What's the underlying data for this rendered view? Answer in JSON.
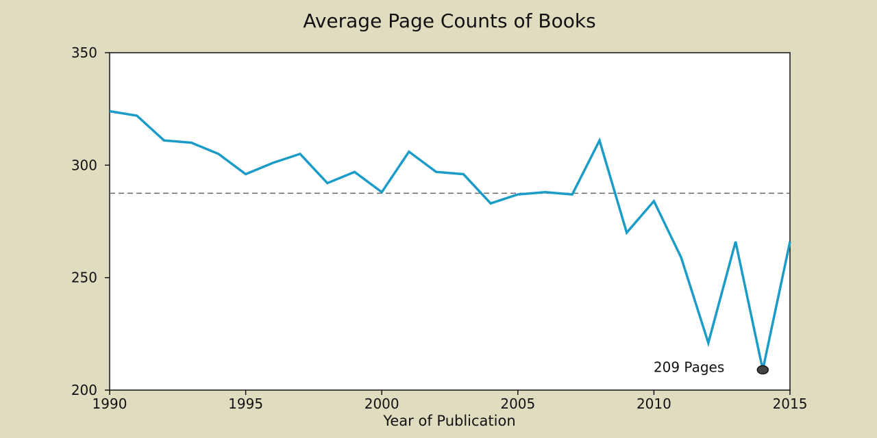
{
  "chart_data": {
    "type": "line",
    "title": "Average Page Counts of Books",
    "xlabel": "Year of Publication",
    "ylabel": "",
    "xlim": [
      1990,
      2015
    ],
    "ylim": [
      200,
      350
    ],
    "xticks": [
      1990,
      1995,
      2000,
      2005,
      2010,
      2015
    ],
    "yticks": [
      200,
      250,
      300,
      350
    ],
    "grid": false,
    "legend": "none",
    "series": [
      {
        "color": "#1a9cc7",
        "x": [
          1990,
          1991,
          1992,
          1993,
          1994,
          1995,
          1996,
          1997,
          1998,
          1999,
          2000,
          2001,
          2002,
          2003,
          2004,
          2005,
          2006,
          2007,
          2008,
          2009,
          2010,
          2011,
          2012,
          2013,
          2014,
          2015
        ],
        "y": [
          324,
          322,
          311,
          310,
          305,
          296,
          301,
          305,
          292,
          297,
          288,
          306,
          297,
          296,
          283,
          287,
          288,
          287,
          311,
          270,
          284,
          259,
          221,
          266,
          209,
          266
        ]
      }
    ],
    "reference_line": {
      "y": 287.5,
      "style": "dashed",
      "color": "#666666"
    },
    "annotation": {
      "text": "209 Pages",
      "x": 2014,
      "y": 209,
      "marker_color": "#444444"
    }
  }
}
